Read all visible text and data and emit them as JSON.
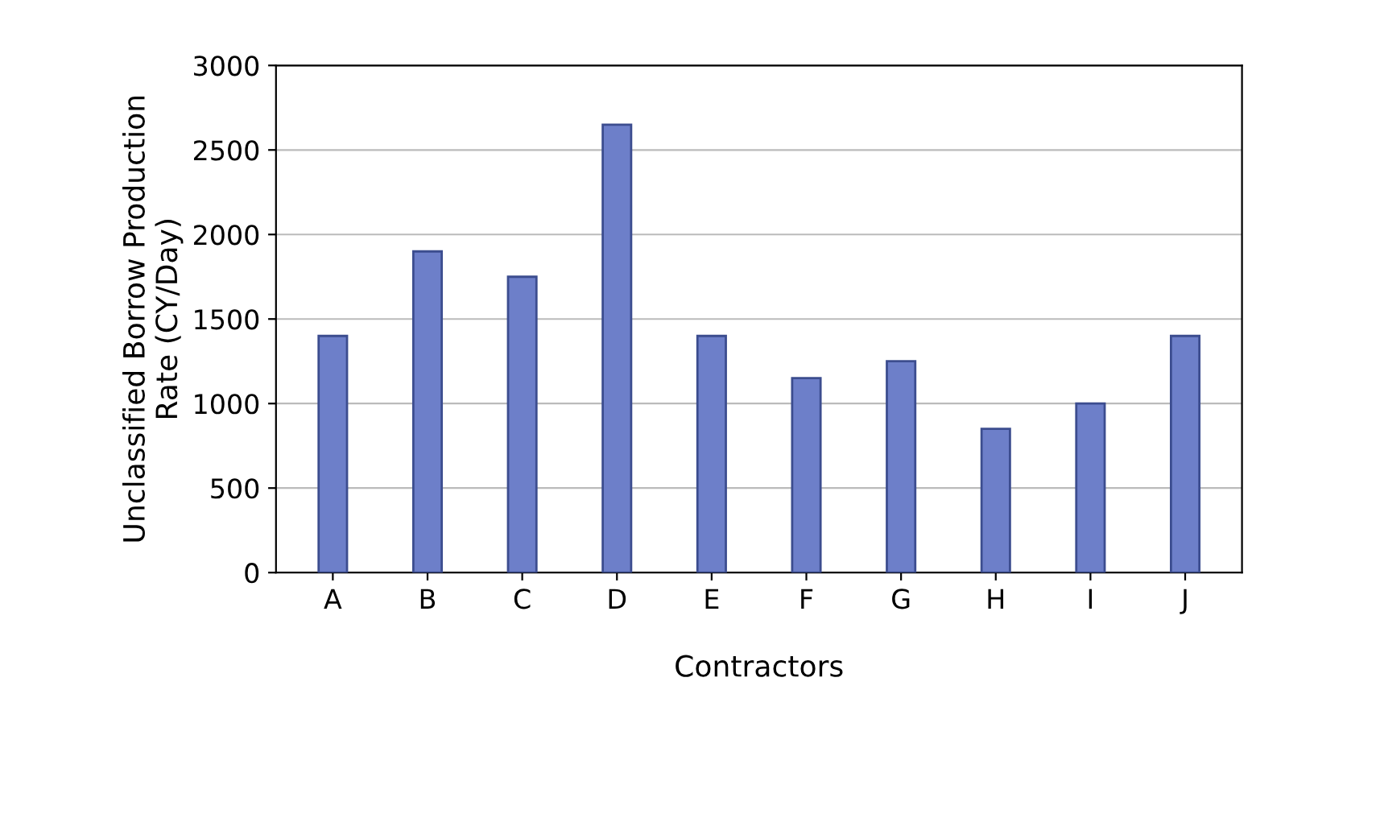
{
  "chart_data": {
    "type": "bar",
    "categories": [
      "A",
      "B",
      "C",
      "D",
      "E",
      "F",
      "G",
      "H",
      "I",
      "J"
    ],
    "values": [
      1400,
      1900,
      1750,
      2650,
      1400,
      1150,
      1250,
      850,
      1000,
      1400
    ],
    "color": "#6d7fc9",
    "xlabel": "Contractors",
    "ylabel": "Unclassified Borrow Production\nRate (CY/Day)",
    "ylim": [
      0,
      3000
    ],
    "yticks": [
      0,
      500,
      1000,
      1500,
      2000,
      2500,
      3000
    ],
    "grid": "y",
    "legend": false
  }
}
